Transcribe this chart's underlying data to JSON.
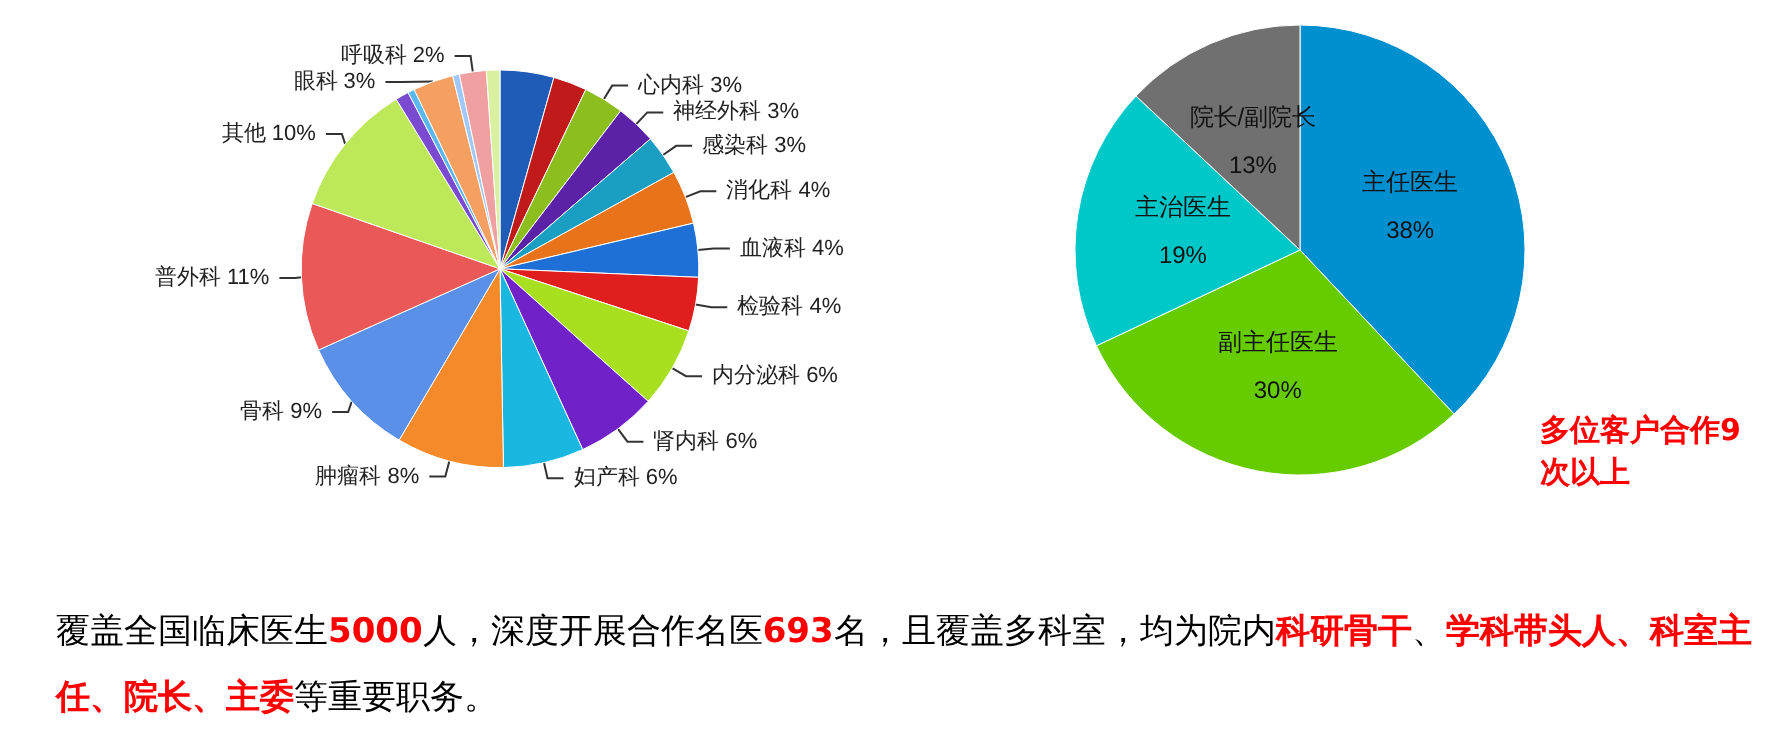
{
  "chart_data": [
    {
      "type": "pie",
      "categories": [
        null,
        null,
        "心内科",
        "神经外科",
        "感染科",
        "消化科",
        "血液科",
        "检验科",
        "内分泌科",
        "肾内科",
        "妇产科",
        "肿瘤科",
        "骨科",
        "普外科",
        "其他",
        null,
        null,
        "眼科",
        null,
        "呼吸科",
        null
      ],
      "values": [
        4,
        2.5,
        3,
        3,
        3,
        4,
        4,
        4,
        6,
        6,
        6,
        8,
        9,
        11,
        10,
        1,
        0.5,
        3,
        0.5,
        2,
        1
      ],
      "colors": [
        "#1f5cb8",
        "#c01a1a",
        "#8cbf1e",
        "#5b22a8",
        "#1a9ec2",
        "#e8731a",
        "#1e70d6",
        "#e01e1e",
        "#a8e020",
        "#7022c8",
        "#1ab8e0",
        "#f58a2a",
        "#5a90e8",
        "#ea5858",
        "#bde85a",
        "#7a4ad0",
        "#5ab8f0",
        "#f5a060",
        "#a0c8f8",
        "#f0a0a0",
        "#d8f0a0"
      ],
      "value_labels": [
        null,
        null,
        "3%",
        "3%",
        "3%",
        "4%",
        "4%",
        "4%",
        "6%",
        "6%",
        "6%",
        "8%",
        "9%",
        "11%",
        "10%",
        null,
        null,
        "3%",
        null,
        "2%",
        null
      ],
      "annotations": [
        "覆盖全国临床医生",
        "5000",
        "人，深度开展合作名医",
        "693",
        "名，且覆盖多科室，均为院内",
        "科研骨干",
        "、",
        "学科带头人、科室主任、院长、主委",
        "等重要职务。"
      ]
    },
    {
      "type": "pie",
      "categories": [
        "主任医生",
        "副主任医生",
        "主治医生",
        "院长/副院长"
      ],
      "values": [
        38,
        30,
        19,
        13
      ],
      "colors": [
        "#0090d0",
        "#66cc00",
        "#00c8c8",
        "#707070"
      ],
      "value_labels": [
        "38%",
        "30%",
        "19%",
        "13%"
      ],
      "annotations": [
        "多位客户合作9次以上"
      ]
    }
  ]
}
